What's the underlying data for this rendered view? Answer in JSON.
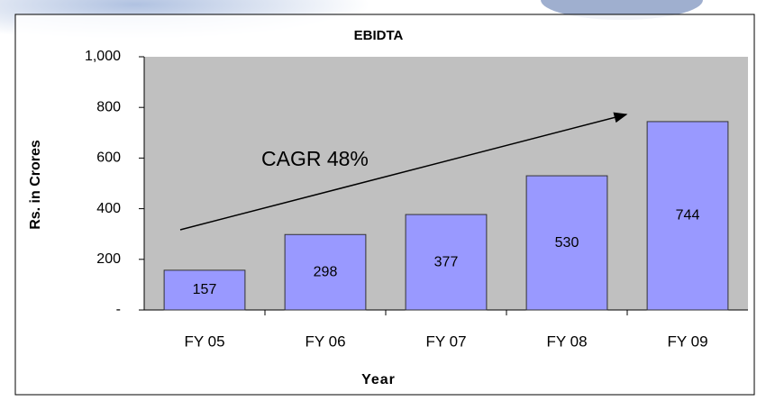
{
  "chart_data": {
    "type": "bar",
    "title": "EBIDTA",
    "x_label": "Year",
    "y_label": "Rs. in Crores",
    "categories": [
      "FY 05",
      "FY 06",
      "FY 07",
      "FY 08",
      "FY 09"
    ],
    "values": [
      157,
      298,
      377,
      530,
      744
    ],
    "color": "#9999ff",
    "ylim": [
      0,
      1000
    ],
    "yticks": [
      {
        "value": 0,
        "label": "-"
      },
      200,
      400,
      600,
      800,
      {
        "value": 1000,
        "label": "1,000"
      }
    ],
    "annotation": "CAGR 48%"
  }
}
